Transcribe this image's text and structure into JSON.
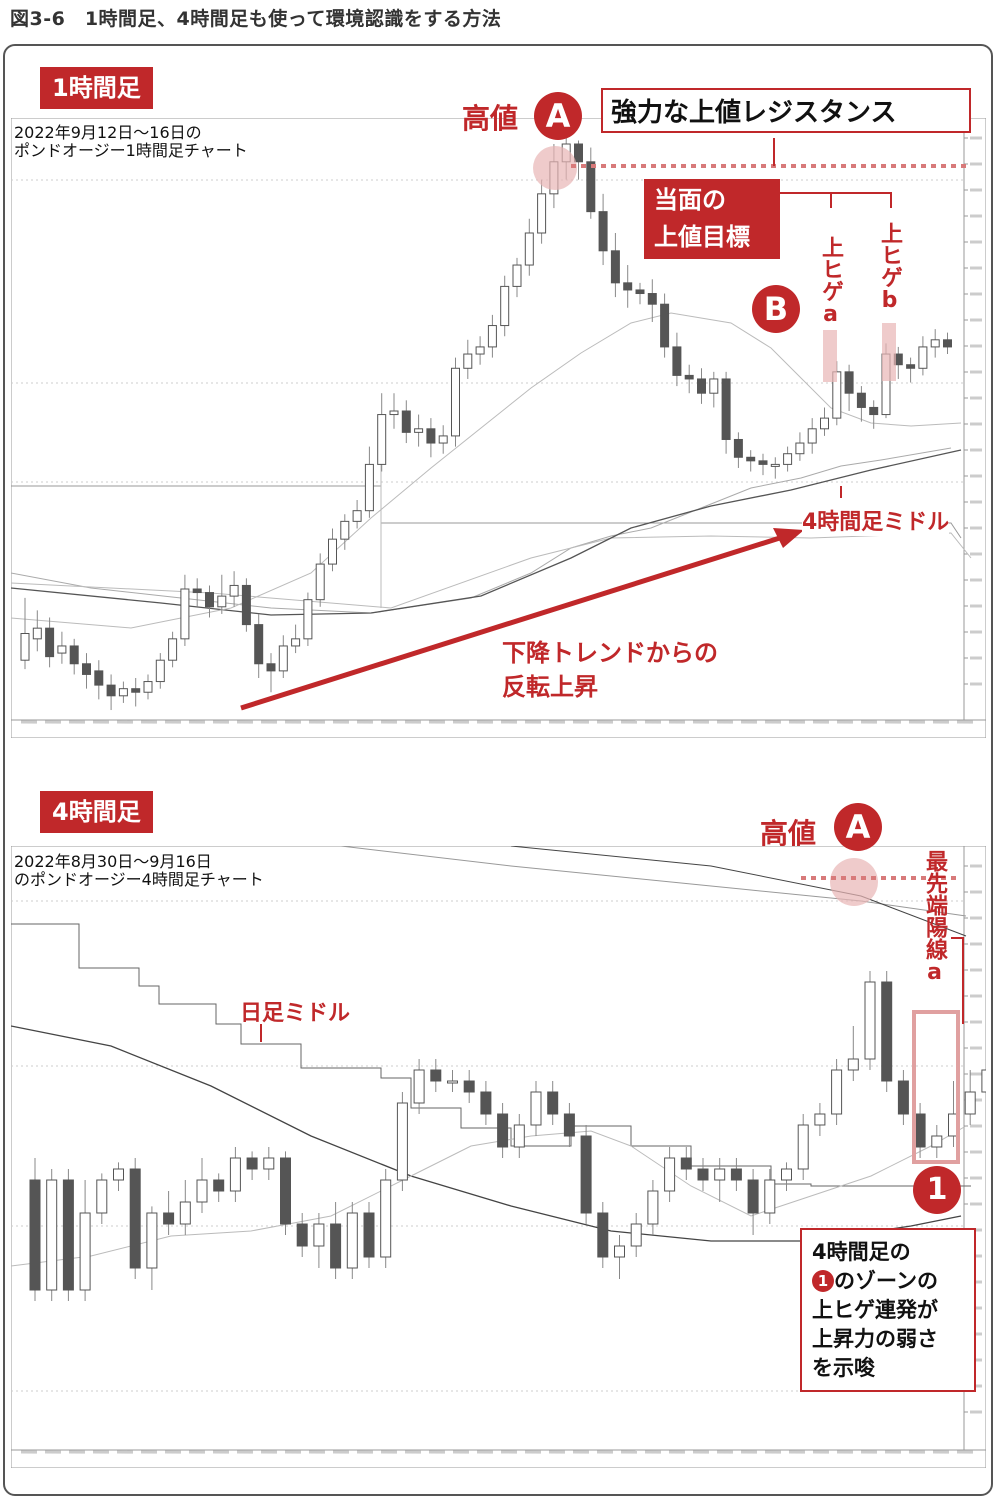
{
  "figure": {
    "title": "図3-6　1時間足、4時間足も使って環境認識をする方法"
  },
  "colors": {
    "accent": "#c0282a",
    "candle": "#555555",
    "ma_light": "#bdbdbd",
    "ma_dark": "#444444"
  },
  "top_panel": {
    "tag": "1時間足",
    "desc_line1": "2022年9月12日～16日の",
    "desc_line2": "ポンドオージー1時間足チャート",
    "high_label": "高値",
    "high_circle": "A",
    "resistance_label": "強力な上値レジスタンス",
    "target_label_1": "当面の",
    "target_label_2": "上値目標",
    "circle_b": "B",
    "wick_a": "上ヒゲa",
    "wick_b": "上ヒゲb",
    "middle_label": "4時間足ミドル",
    "trend_label_1": "下降トレンドからの",
    "trend_label_2": "反転上昇"
  },
  "bottom_panel": {
    "tag": "4時間足",
    "desc_line1": "2022年8月30日～9月16日",
    "desc_line2": "のポンドオージー4時間足チャート",
    "high_label": "高値",
    "high_circle": "A",
    "latest_label": "最先端陽線a",
    "daily_middle_label": "日足ミドル",
    "zone_circle": "1",
    "note_line1": "4時間足の",
    "note_line2_circle": "1",
    "note_line2": "のゾーンの",
    "note_line3": "上ヒゲ連発が",
    "note_line4": "上昇力の弱さ",
    "note_line5": "を示唆"
  },
  "chart_data": [
    {
      "type": "candlestick",
      "title": "1時間足",
      "ohlc": [
        [
          10,
          25,
          45,
          5
        ],
        [
          22,
          28,
          38,
          15
        ],
        [
          28,
          12,
          34,
          6
        ],
        [
          14,
          18,
          26,
          8
        ],
        [
          18,
          8,
          22,
          2
        ],
        [
          8,
          2,
          14,
          -6
        ],
        [
          4,
          -4,
          10,
          -12
        ],
        [
          -4,
          -10,
          2,
          -18
        ],
        [
          -10,
          -6,
          -2,
          -14
        ],
        [
          -6,
          -8,
          0,
          -16
        ],
        [
          -8,
          -2,
          2,
          -12
        ],
        [
          -2,
          10,
          14,
          -6
        ],
        [
          10,
          22,
          26,
          6
        ],
        [
          22,
          50,
          58,
          18
        ],
        [
          50,
          48,
          56,
          40
        ],
        [
          48,
          40,
          52,
          34
        ],
        [
          40,
          46,
          58,
          36
        ],
        [
          46,
          52,
          60,
          40
        ],
        [
          52,
          30,
          56,
          26
        ],
        [
          30,
          8,
          36,
          0
        ],
        [
          8,
          4,
          14,
          -8
        ],
        [
          4,
          18,
          24,
          0
        ],
        [
          18,
          22,
          30,
          14
        ],
        [
          22,
          44,
          48,
          18
        ],
        [
          44,
          64,
          70,
          40
        ],
        [
          64,
          78,
          84,
          60
        ],
        [
          78,
          88,
          92,
          72
        ],
        [
          88,
          94,
          100,
          84
        ],
        [
          94,
          120,
          130,
          90
        ],
        [
          120,
          148,
          160,
          116
        ],
        [
          148,
          150,
          160,
          140
        ],
        [
          150,
          138,
          156,
          132
        ],
        [
          138,
          140,
          148,
          130
        ],
        [
          140,
          132,
          146,
          124
        ],
        [
          132,
          136,
          142,
          126
        ],
        [
          136,
          174,
          180,
          130
        ],
        [
          174,
          182,
          190,
          168
        ],
        [
          182,
          186,
          192,
          176
        ],
        [
          186,
          198,
          204,
          180
        ],
        [
          198,
          220,
          226,
          192
        ],
        [
          220,
          232,
          236,
          214
        ],
        [
          232,
          250,
          258,
          226
        ],
        [
          250,
          272,
          280,
          244
        ],
        [
          272,
          290,
          300,
          264
        ],
        [
          290,
          300,
          306,
          280
        ],
        [
          300,
          290,
          302,
          280
        ],
        [
          290,
          262,
          298,
          258
        ],
        [
          262,
          240,
          272,
          232
        ],
        [
          240,
          222,
          250,
          214
        ],
        [
          222,
          218,
          232,
          208
        ],
        [
          218,
          216,
          222,
          210
        ],
        [
          216,
          210,
          224,
          200
        ],
        [
          210,
          186,
          216,
          180
        ],
        [
          186,
          170,
          194,
          164
        ],
        [
          170,
          168,
          176,
          160
        ],
        [
          168,
          160,
          174,
          154
        ],
        [
          160,
          168,
          172,
          152
        ],
        [
          168,
          134,
          172,
          126
        ],
        [
          134,
          124,
          138,
          118
        ],
        [
          124,
          122,
          128,
          116
        ],
        [
          122,
          120,
          126,
          114
        ],
        [
          120,
          120,
          124,
          112
        ],
        [
          120,
          126,
          130,
          116
        ],
        [
          126,
          132,
          138,
          122
        ],
        [
          132,
          140,
          146,
          126
        ],
        [
          140,
          146,
          152,
          136
        ],
        [
          146,
          172,
          178,
          142
        ],
        [
          172,
          160,
          176,
          150
        ],
        [
          160,
          152,
          164,
          144
        ],
        [
          152,
          148,
          156,
          140
        ],
        [
          148,
          182,
          188,
          146
        ],
        [
          182,
          176,
          186,
          168
        ],
        [
          176,
          174,
          180,
          166
        ],
        [
          174,
          186,
          192,
          170
        ],
        [
          186,
          190,
          196,
          180
        ],
        [
          190,
          186,
          194,
          182
        ]
      ],
      "series": [
        {
          "values": [
            20,
            21,
            20,
            18,
            17,
            16,
            15,
            16,
            18,
            20,
            22,
            30,
            40,
            55,
            70,
            85,
            100,
            115,
            130,
            145,
            160,
            175,
            190,
            200,
            210,
            215,
            218,
            220,
            218,
            214,
            210,
            200,
            190,
            180,
            170,
            160,
            152,
            148,
            145,
            142,
            140
          ]
        }
      ]
    },
    {
      "type": "candlestick",
      "title": "4時間足",
      "ohlc": [
        [
          60,
          -40,
          80,
          -50
        ],
        [
          -40,
          60,
          70,
          -50
        ],
        [
          60,
          -40,
          70,
          -50
        ],
        [
          -40,
          30,
          60,
          -50
        ],
        [
          30,
          60,
          66,
          20
        ],
        [
          60,
          70,
          76,
          50
        ],
        [
          70,
          -20,
          80,
          -30
        ],
        [
          -20,
          30,
          36,
          -40
        ],
        [
          30,
          20,
          50,
          10
        ],
        [
          20,
          40,
          60,
          10
        ],
        [
          40,
          60,
          80,
          30
        ],
        [
          60,
          50,
          66,
          40
        ],
        [
          50,
          80,
          90,
          40
        ],
        [
          80,
          70,
          86,
          60
        ],
        [
          70,
          80,
          90,
          60
        ],
        [
          80,
          20,
          86,
          10
        ],
        [
          20,
          0,
          30,
          -10
        ],
        [
          0,
          20,
          30,
          -20
        ],
        [
          20,
          -20,
          40,
          -30
        ],
        [
          -20,
          30,
          40,
          -30
        ],
        [
          30,
          -10,
          40,
          -20
        ],
        [
          -10,
          60,
          70,
          -20
        ],
        [
          60,
          130,
          140,
          50
        ],
        [
          130,
          160,
          170,
          120
        ],
        [
          160,
          150,
          170,
          140
        ],
        [
          150,
          150,
          160,
          140
        ],
        [
          150,
          140,
          160,
          130
        ],
        [
          140,
          120,
          150,
          110
        ],
        [
          120,
          90,
          130,
          80
        ],
        [
          90,
          110,
          120,
          80
        ],
        [
          110,
          140,
          150,
          100
        ],
        [
          140,
          120,
          150,
          110
        ],
        [
          120,
          100,
          130,
          90
        ],
        [
          100,
          30,
          110,
          20
        ],
        [
          30,
          -10,
          40,
          -20
        ],
        [
          -10,
          0,
          10,
          -30
        ],
        [
          0,
          20,
          30,
          -10
        ],
        [
          20,
          50,
          60,
          10
        ],
        [
          50,
          80,
          90,
          40
        ],
        [
          80,
          70,
          90,
          60
        ],
        [
          70,
          60,
          80,
          50
        ],
        [
          60,
          70,
          80,
          40
        ],
        [
          70,
          60,
          80,
          50
        ],
        [
          60,
          30,
          70,
          10
        ],
        [
          30,
          60,
          70,
          20
        ],
        [
          60,
          70,
          76,
          50
        ],
        [
          70,
          110,
          120,
          60
        ],
        [
          110,
          120,
          130,
          100
        ],
        [
          120,
          160,
          170,
          110
        ],
        [
          160,
          170,
          200,
          150
        ],
        [
          170,
          240,
          250,
          160
        ],
        [
          240,
          150,
          250,
          140
        ],
        [
          150,
          120,
          160,
          110
        ],
        [
          120,
          90,
          130,
          80
        ],
        [
          90,
          100,
          110,
          80
        ],
        [
          100,
          120,
          150,
          90
        ],
        [
          120,
          140,
          160,
          110
        ],
        [
          140,
          160,
          170,
          130
        ]
      ]
    }
  ]
}
